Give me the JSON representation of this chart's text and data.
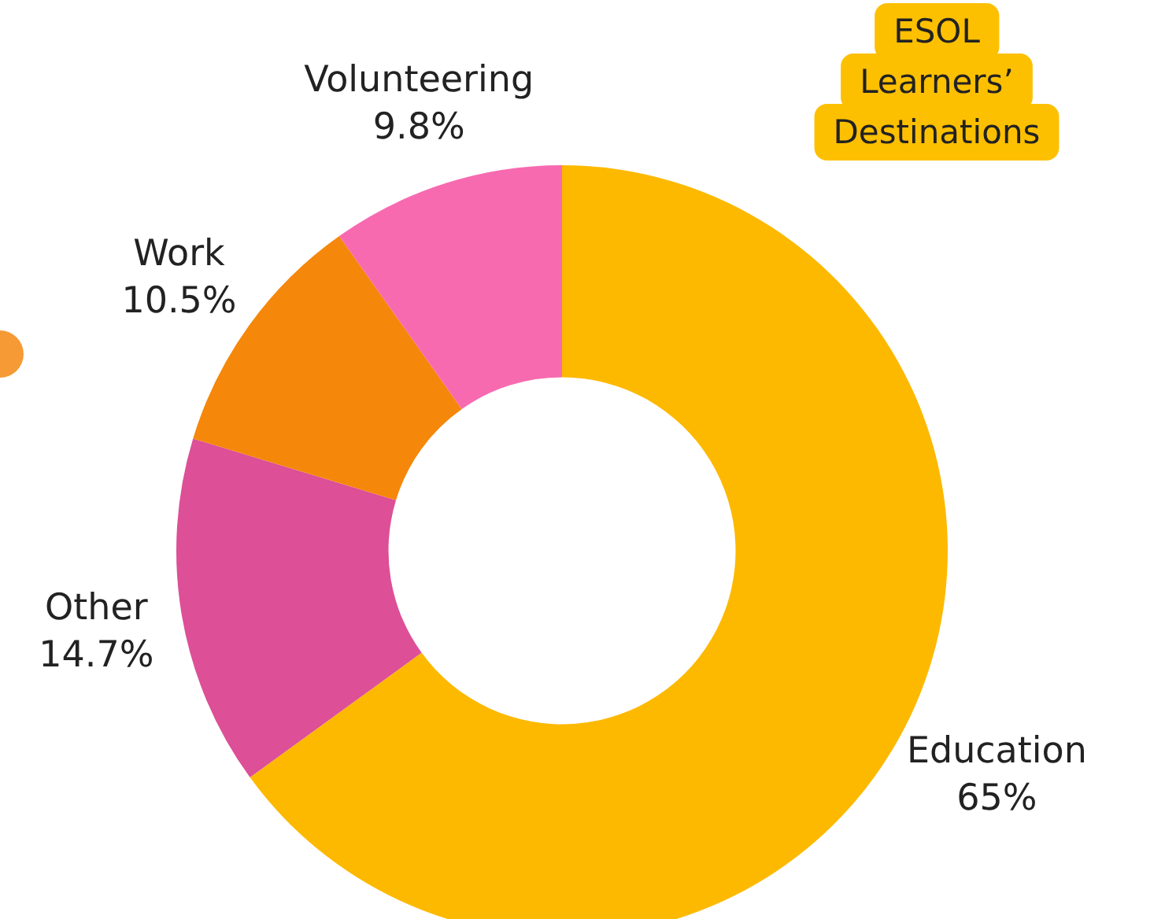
{
  "chart_data": {
    "type": "donut",
    "title": "ESOL Learners’ Destinations",
    "categories": [
      "Education",
      "Other",
      "Work",
      "Volunteering"
    ],
    "values": [
      65,
      14.7,
      10.5,
      9.8
    ],
    "value_labels": [
      "65%",
      "14.7%",
      "10.5%",
      "9.8%"
    ],
    "colors": [
      "#fdb900",
      "#dd4f96",
      "#f5870a",
      "#f76ab0"
    ]
  }
}
